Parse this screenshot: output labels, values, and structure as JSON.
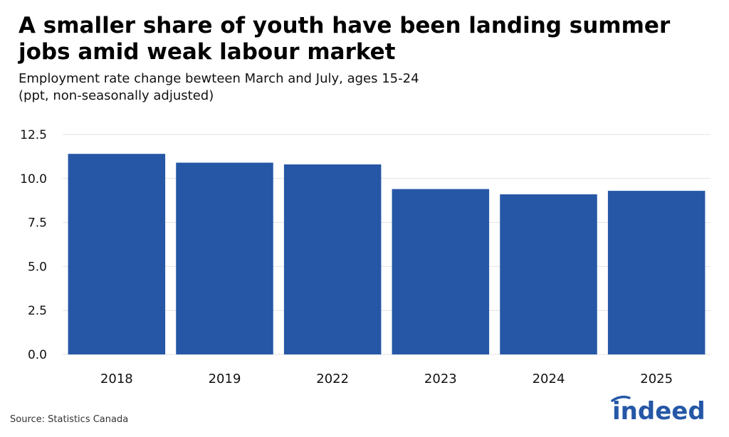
{
  "header": {
    "title": "A smaller share of youth have been landing summer jobs amid weak labour market",
    "subtitle_line1": "Employment rate change bewteen March and July, ages 15-24",
    "subtitle_line2": "(ppt, non-seasonally adjusted)"
  },
  "footer": {
    "source": "Source: Statistics Canada",
    "logo_text": "indeed"
  },
  "colors": {
    "bar": "#2657a6",
    "grid": "#e2e2e2",
    "logo": "#2557a7"
  },
  "chart_data": {
    "type": "bar",
    "title": "A smaller share of youth have been landing summer jobs amid weak labour market",
    "subtitle": "Employment rate change bewteen March and July, ages 15-24 (ppt, non-seasonally adjusted)",
    "categories": [
      "2018",
      "2019",
      "2022",
      "2023",
      "2024",
      "2025"
    ],
    "values": [
      11.4,
      10.9,
      10.8,
      9.4,
      9.1,
      9.3
    ],
    "xlabel": "",
    "ylabel": "",
    "ylim": [
      0,
      12.5
    ],
    "yticks": [
      "0.0",
      "2.5",
      "5.0",
      "7.5",
      "10.0",
      "12.5"
    ],
    "grid": true,
    "legend": "none"
  }
}
